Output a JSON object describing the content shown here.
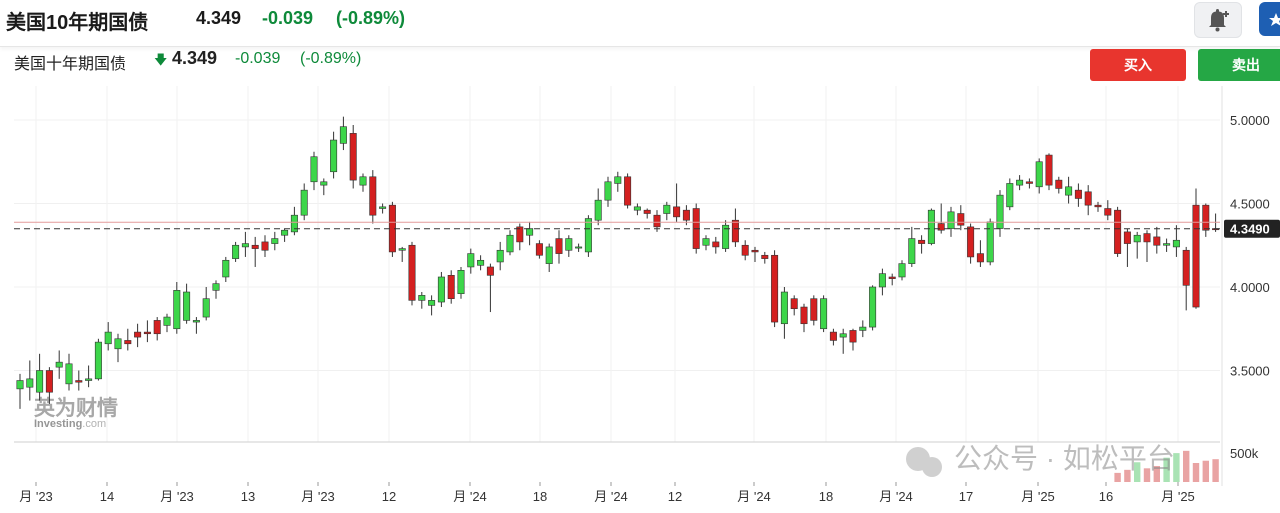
{
  "colors": {
    "up": "#22b14c",
    "down": "#d01f1f",
    "green_text": "#0e8a3a",
    "buy": "#e8352e",
    "sell": "#25a745"
  },
  "header": {
    "instrument": "美国10年期国债",
    "price": "4.349",
    "change": "-0.039",
    "change_pct": "(-0.89%)"
  },
  "icons": {
    "alert": "bell-plus-icon",
    "watchlist": "star-icon"
  },
  "chart_header": {
    "instrument": "美国十年期国债",
    "arrow": "🡇",
    "price": "4.349",
    "change": "-0.039",
    "change_pct": "(-0.89%)"
  },
  "actions": {
    "buy": "买入",
    "sell": "卖出"
  },
  "watermark": {
    "brand_cn": "英为财情",
    "brand_en": "Investing",
    "brand_suffix": ".com"
  },
  "overlay_watermark": "公众号 · 如松平台",
  "chart_data": {
    "type": "candlestick",
    "y_axis": {
      "ticks": [
        "5.0000",
        "4.5000",
        "4.0000",
        "3.5000"
      ],
      "range": [
        3.3,
        5.1
      ],
      "position": "right"
    },
    "volume_axis_label": "500k",
    "last_price_label": "4.3490",
    "x_axis": {
      "ticks": [
        "月 '23",
        "14",
        "月 '23",
        "13",
        "月 '23",
        "12",
        "月 '24",
        "18",
        "月 '24",
        "12",
        "月 '24",
        "18",
        "月 '24",
        "17",
        "月 '25",
        "16",
        "月 '25"
      ]
    },
    "candles": [
      [
        3.39,
        3.44,
        3.27,
        3.48
      ],
      [
        3.4,
        3.45,
        3.32,
        3.56
      ],
      [
        3.37,
        3.5,
        3.32,
        3.6
      ],
      [
        3.5,
        3.37,
        3.3,
        3.52
      ],
      [
        3.52,
        3.55,
        3.45,
        3.62
      ],
      [
        3.42,
        3.54,
        3.38,
        3.6
      ],
      [
        3.44,
        3.43,
        3.38,
        3.5
      ],
      [
        3.44,
        3.45,
        3.4,
        3.53
      ],
      [
        3.45,
        3.67,
        3.44,
        3.69
      ],
      [
        3.66,
        3.73,
        3.62,
        3.79
      ],
      [
        3.63,
        3.69,
        3.55,
        3.72
      ],
      [
        3.68,
        3.66,
        3.62,
        3.75
      ],
      [
        3.73,
        3.7,
        3.64,
        3.78
      ],
      [
        3.73,
        3.72,
        3.67,
        3.8
      ],
      [
        3.8,
        3.72,
        3.68,
        3.82
      ],
      [
        3.77,
        3.82,
        3.73,
        3.84
      ],
      [
        3.75,
        3.98,
        3.72,
        4.03
      ],
      [
        3.8,
        3.97,
        3.78,
        4.02
      ],
      [
        3.79,
        3.8,
        3.72,
        3.82
      ],
      [
        3.82,
        3.93,
        3.8,
        4.0
      ],
      [
        3.98,
        4.02,
        3.93,
        4.04
      ],
      [
        4.06,
        4.16,
        4.03,
        4.18
      ],
      [
        4.17,
        4.25,
        4.15,
        4.27
      ],
      [
        4.24,
        4.26,
        4.18,
        4.33
      ],
      [
        4.25,
        4.23,
        4.12,
        4.3
      ],
      [
        4.27,
        4.22,
        4.18,
        4.31
      ],
      [
        4.26,
        4.29,
        4.22,
        4.33
      ],
      [
        4.31,
        4.34,
        4.27,
        4.35
      ],
      [
        4.33,
        4.43,
        4.31,
        4.48
      ],
      [
        4.43,
        4.58,
        4.4,
        4.62
      ],
      [
        4.63,
        4.78,
        4.58,
        4.81
      ],
      [
        4.61,
        4.63,
        4.55,
        4.65
      ],
      [
        4.69,
        4.88,
        4.65,
        4.93
      ],
      [
        4.86,
        4.96,
        4.82,
        5.02
      ],
      [
        4.92,
        4.64,
        4.59,
        4.97
      ],
      [
        4.61,
        4.66,
        4.57,
        4.68
      ],
      [
        4.66,
        4.43,
        4.38,
        4.7
      ],
      [
        4.47,
        4.48,
        4.44,
        4.5
      ],
      [
        4.49,
        4.21,
        4.18,
        4.51
      ],
      [
        4.22,
        4.23,
        4.15,
        4.24
      ],
      [
        4.25,
        3.92,
        3.89,
        4.27
      ],
      [
        3.92,
        3.95,
        3.87,
        3.97
      ],
      [
        3.89,
        3.92,
        3.83,
        3.95
      ],
      [
        3.91,
        4.06,
        3.88,
        4.09
      ],
      [
        4.07,
        3.93,
        3.9,
        4.1
      ],
      [
        3.96,
        4.1,
        3.93,
        4.12
      ],
      [
        4.12,
        4.2,
        4.08,
        4.23
      ],
      [
        4.13,
        4.16,
        4.1,
        4.19
      ],
      [
        4.12,
        4.07,
        3.85,
        4.14
      ],
      [
        4.15,
        4.22,
        4.1,
        4.27
      ],
      [
        4.21,
        4.31,
        4.19,
        4.34
      ],
      [
        4.36,
        4.27,
        4.22,
        4.38
      ],
      [
        4.31,
        4.35,
        4.25,
        4.39
      ],
      [
        4.26,
        4.19,
        4.17,
        4.28
      ],
      [
        4.14,
        4.24,
        4.09,
        4.26
      ],
      [
        4.29,
        4.2,
        4.14,
        4.34
      ],
      [
        4.22,
        4.29,
        4.18,
        4.31
      ],
      [
        4.24,
        4.24,
        4.21,
        4.26
      ],
      [
        4.21,
        4.41,
        4.18,
        4.43
      ],
      [
        4.4,
        4.52,
        4.37,
        4.59
      ],
      [
        4.52,
        4.63,
        4.48,
        4.66
      ],
      [
        4.62,
        4.66,
        4.57,
        4.69
      ],
      [
        4.66,
        4.49,
        4.47,
        4.68
      ],
      [
        4.46,
        4.48,
        4.43,
        4.5
      ],
      [
        4.46,
        4.44,
        4.41,
        4.47
      ],
      [
        4.43,
        4.36,
        4.33,
        4.46
      ],
      [
        4.44,
        4.49,
        4.4,
        4.51
      ],
      [
        4.48,
        4.42,
        4.39,
        4.62
      ],
      [
        4.46,
        4.4,
        4.37,
        4.49
      ],
      [
        4.47,
        4.23,
        4.2,
        4.5
      ],
      [
        4.25,
        4.29,
        4.22,
        4.31
      ],
      [
        4.27,
        4.24,
        4.2,
        4.3
      ],
      [
        4.23,
        4.37,
        4.21,
        4.4
      ],
      [
        4.4,
        4.27,
        4.24,
        4.47
      ],
      [
        4.25,
        4.19,
        4.16,
        4.28
      ],
      [
        4.22,
        4.21,
        4.15,
        4.24
      ],
      [
        4.19,
        4.17,
        4.14,
        4.21
      ],
      [
        4.19,
        3.79,
        3.76,
        4.22
      ],
      [
        3.78,
        3.97,
        3.69,
        4.0
      ],
      [
        3.93,
        3.87,
        3.83,
        3.95
      ],
      [
        3.88,
        3.78,
        3.73,
        3.9
      ],
      [
        3.93,
        3.8,
        3.77,
        3.95
      ],
      [
        3.75,
        3.93,
        3.73,
        3.95
      ],
      [
        3.73,
        3.68,
        3.65,
        3.75
      ],
      [
        3.7,
        3.72,
        3.6,
        3.75
      ],
      [
        3.74,
        3.67,
        3.62,
        3.75
      ],
      [
        3.74,
        3.76,
        3.7,
        3.8
      ],
      [
        3.76,
        4.0,
        3.74,
        4.01
      ],
      [
        4.0,
        4.08,
        3.95,
        4.11
      ],
      [
        4.06,
        4.05,
        4.01,
        4.08
      ],
      [
        4.06,
        4.14,
        4.04,
        4.16
      ],
      [
        4.14,
        4.29,
        4.12,
        4.36
      ],
      [
        4.28,
        4.26,
        4.2,
        4.31
      ],
      [
        4.26,
        4.46,
        4.25,
        4.47
      ],
      [
        4.38,
        4.34,
        4.32,
        4.5
      ],
      [
        4.35,
        4.45,
        4.3,
        4.48
      ],
      [
        4.44,
        4.37,
        4.34,
        4.49
      ],
      [
        4.36,
        4.18,
        4.14,
        4.38
      ],
      [
        4.2,
        4.15,
        4.12,
        4.28
      ],
      [
        4.15,
        4.39,
        4.13,
        4.41
      ],
      [
        4.35,
        4.55,
        4.3,
        4.58
      ],
      [
        4.48,
        4.62,
        4.46,
        4.65
      ],
      [
        4.61,
        4.64,
        4.58,
        4.67
      ],
      [
        4.63,
        4.62,
        4.59,
        4.65
      ],
      [
        4.6,
        4.75,
        4.56,
        4.77
      ],
      [
        4.79,
        4.61,
        4.58,
        4.8
      ],
      [
        4.64,
        4.59,
        4.56,
        4.66
      ],
      [
        4.55,
        4.6,
        4.5,
        4.66
      ],
      [
        4.58,
        4.53,
        4.48,
        4.62
      ],
      [
        4.57,
        4.49,
        4.43,
        4.61
      ],
      [
        4.49,
        4.48,
        4.45,
        4.51
      ],
      [
        4.47,
        4.43,
        4.4,
        4.52
      ],
      [
        4.46,
        4.2,
        4.18,
        4.48
      ],
      [
        4.33,
        4.26,
        4.12,
        4.35
      ],
      [
        4.27,
        4.31,
        4.17,
        4.33
      ],
      [
        4.32,
        4.27,
        4.15,
        4.34
      ],
      [
        4.3,
        4.25,
        4.2,
        4.36
      ],
      [
        4.25,
        4.26,
        4.21,
        4.29
      ],
      [
        4.24,
        4.28,
        4.18,
        4.37
      ],
      [
        4.22,
        4.01,
        3.86,
        4.24
      ],
      [
        4.49,
        3.88,
        3.87,
        4.59
      ],
      [
        4.49,
        4.34,
        4.3,
        4.5
      ],
      [
        4.35,
        4.349,
        4.33,
        4.44
      ]
    ],
    "volume": [
      0,
      0,
      0,
      0,
      0,
      0,
      0,
      0,
      0,
      0,
      0,
      0,
      0,
      0,
      0,
      0,
      0,
      0,
      0,
      0,
      0,
      0,
      0,
      0,
      0,
      0,
      0,
      0,
      0,
      0,
      0,
      0,
      0,
      0,
      0,
      0,
      0,
      0,
      0,
      0,
      0,
      0,
      0,
      0,
      0,
      0,
      0,
      0,
      0,
      0,
      0,
      0,
      0,
      0,
      0,
      0,
      0,
      0,
      0,
      0,
      0,
      0,
      0,
      0,
      0,
      0,
      0,
      0,
      0,
      0,
      0,
      0,
      0,
      0,
      0,
      0,
      0,
      0,
      0,
      0,
      0,
      0,
      0,
      0,
      0,
      0,
      0,
      0,
      0,
      0,
      0,
      0,
      0,
      0,
      0,
      0,
      0,
      0,
      0,
      0,
      0,
      0,
      0,
      0,
      0,
      0,
      0,
      0,
      0,
      0,
      0,
      0,
      120000,
      160000,
      260000,
      180000,
      210000,
      320000,
      380000,
      410000,
      250000,
      280000,
      300000
    ],
    "grid": true
  }
}
